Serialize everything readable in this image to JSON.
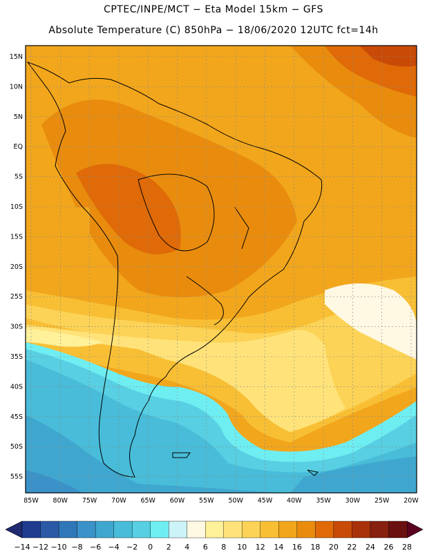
{
  "title": {
    "line1": "CPTEC/INPE/MCT −  Eta Model 15km − GFS",
    "line2": "Absolute Temperature (C) 850hPa − 18/06/2020 12UTC fct=14h"
  },
  "map": {
    "lat_labels": [
      "15N",
      "10N",
      "5N",
      "EQ",
      "5S",
      "10S",
      "15S",
      "20S",
      "25S",
      "30S",
      "35S",
      "40S",
      "45S",
      "50S",
      "55S"
    ],
    "lon_labels": [
      "85W",
      "80W",
      "75W",
      "70W",
      "65W",
      "60W",
      "55W",
      "50W",
      "45W",
      "40W",
      "35W",
      "30W",
      "25W",
      "20W"
    ]
  },
  "colorbar": {
    "colors": [
      "#1f3c8f",
      "#2a5aa5",
      "#2f77b8",
      "#3a92c8",
      "#3fa7cf",
      "#48bcd8",
      "#58cfe2",
      "#6feef2",
      "#ccf3f8",
      "#fff8e2",
      "#fff09a",
      "#ffe37a",
      "#fcd357",
      "#f8bf35",
      "#f2a61c",
      "#e98c0e",
      "#df6a07",
      "#c94a06",
      "#a9320b",
      "#86200f",
      "#6a1010"
    ],
    "labels": [
      "-14",
      "-12",
      "-10",
      "-8",
      "-6",
      "-4",
      "-2",
      "0",
      "2",
      "4",
      "6",
      "8",
      "10",
      "12",
      "14",
      "16",
      "18",
      "20",
      "22",
      "24",
      "26",
      "28"
    ],
    "low_arrow_color": "#1f2a70",
    "high_arrow_color": "#5a0020"
  }
}
